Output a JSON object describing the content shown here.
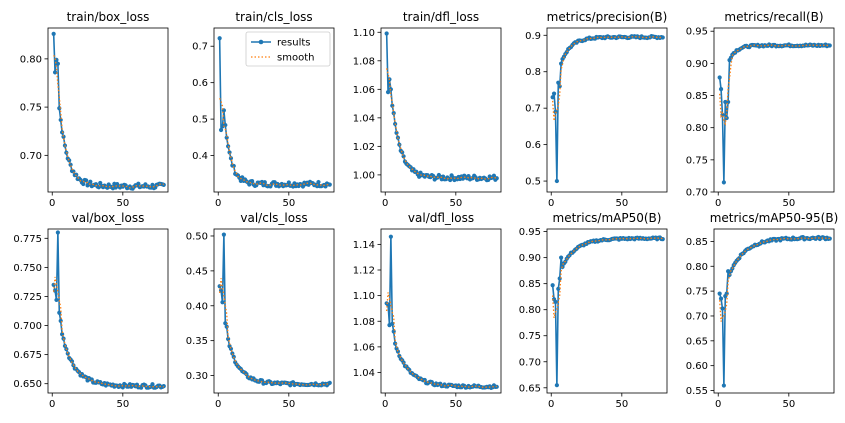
{
  "colors": {
    "results": "#1f77b4",
    "smooth": "#ff7f0e"
  },
  "legend": {
    "results": "results",
    "smooth": "smooth",
    "placement": "top-right of train/cls_loss"
  },
  "chart_data": [
    {
      "type": "line",
      "title": "train/box_loss",
      "xlim": [
        -3,
        82
      ],
      "ylim": [
        0.662,
        0.832
      ],
      "xticks": [
        0,
        50
      ],
      "xtick_labels": [
        "0",
        "50"
      ],
      "yticks": [
        0.7,
        0.75,
        0.8
      ],
      "ytick_labels": [
        "0.70",
        "0.75",
        "0.80"
      ],
      "series": [
        {
          "name": "results",
          "kind": "curve",
          "start": 0.826,
          "end": 0.668,
          "decay": 6,
          "pulls": [
            [
              1,
              0.786
            ],
            [
              2,
              0.799
            ],
            [
              3,
              0.795
            ]
          ]
        }
      ]
    },
    {
      "type": "line",
      "title": "train/cls_loss",
      "xlim": [
        -3,
        82
      ],
      "ylim": [
        0.3,
        0.75
      ],
      "xticks": [
        0,
        50
      ],
      "xtick_labels": [
        "0",
        "50"
      ],
      "yticks": [
        0.4,
        0.5,
        0.6,
        0.7
      ],
      "ytick_labels": [
        "0.4",
        "0.5",
        "0.6",
        "0.7"
      ],
      "legend": true,
      "series": [
        {
          "name": "results",
          "kind": "curve",
          "start": 0.72,
          "end": 0.322,
          "decay": 4.5,
          "pulls": [
            [
              1,
              0.47
            ],
            [
              2,
              0.48
            ]
          ]
        }
      ]
    },
    {
      "type": "line",
      "title": "train/dfl_loss",
      "xlim": [
        -3,
        82
      ],
      "ylim": [
        0.988,
        1.103
      ],
      "xticks": [
        0,
        50
      ],
      "xtick_labels": [
        "0",
        "50"
      ],
      "yticks": [
        1.0,
        1.02,
        1.04,
        1.06,
        1.08,
        1.1
      ],
      "ytick_labels": [
        "1.00",
        "1.02",
        "1.04",
        "1.06",
        "1.08",
        "1.10"
      ],
      "series": [
        {
          "name": "results",
          "kind": "curve",
          "start": 1.099,
          "end": 0.998,
          "decay": 6,
          "pulls": [
            [
              1,
              1.058
            ],
            [
              2,
              1.067
            ],
            [
              3,
              1.06
            ]
          ]
        }
      ]
    },
    {
      "type": "line",
      "title": "metrics/precision(B)",
      "xlim": [
        -3,
        82
      ],
      "ylim": [
        0.47,
        0.92
      ],
      "xticks": [
        0,
        50
      ],
      "xtick_labels": [
        "0",
        "50"
      ],
      "yticks": [
        0.5,
        0.6,
        0.7,
        0.8,
        0.9
      ],
      "ytick_labels": [
        "0.5",
        "0.6",
        "0.7",
        "0.8",
        "0.9"
      ],
      "series": [
        {
          "name": "results",
          "kind": "curve",
          "start": 0.73,
          "end": 0.895,
          "decay": 7,
          "pulls": [
            [
              0,
              0.73
            ],
            [
              1,
              0.74
            ],
            [
              2,
              0.69
            ],
            [
              3,
              0.5
            ],
            [
              4,
              0.77
            ],
            [
              5,
              0.76
            ]
          ]
        }
      ]
    },
    {
      "type": "line",
      "title": "metrics/recall(B)",
      "xlim": [
        -3,
        82
      ],
      "ylim": [
        0.7,
        0.955
      ],
      "xticks": [
        0,
        50
      ],
      "xtick_labels": [
        "0",
        "50"
      ],
      "yticks": [
        0.7,
        0.75,
        0.8,
        0.85,
        0.9,
        0.95
      ],
      "ytick_labels": [
        "0.70",
        "0.75",
        "0.80",
        "0.85",
        "0.90",
        "0.95"
      ],
      "series": [
        {
          "name": "results",
          "kind": "curve",
          "start": 0.84,
          "end": 0.928,
          "decay": 5,
          "pulls": [
            [
              0,
              0.878
            ],
            [
              1,
              0.86
            ],
            [
              2,
              0.82
            ],
            [
              3,
              0.715
            ],
            [
              4,
              0.84
            ],
            [
              5,
              0.815
            ],
            [
              6,
              0.84
            ]
          ]
        }
      ]
    },
    {
      "type": "line",
      "title": "val/box_loss",
      "xlim": [
        -3,
        82
      ],
      "ylim": [
        0.642,
        0.783
      ],
      "xticks": [
        0,
        50
      ],
      "xtick_labels": [
        "0",
        "50"
      ],
      "yticks": [
        0.65,
        0.675,
        0.7,
        0.725,
        0.75,
        0.775
      ],
      "ytick_labels": [
        "0.650",
        "0.675",
        "0.700",
        "0.725",
        "0.750",
        "0.775"
      ],
      "series": [
        {
          "name": "results",
          "kind": "curve",
          "start": 0.735,
          "end": 0.648,
          "decay": 9,
          "pulls": [
            [
              0,
              0.735
            ],
            [
              1,
              0.73
            ],
            [
              2,
              0.722
            ],
            [
              3,
              0.78
            ],
            [
              4,
              0.711
            ],
            [
              5,
              0.704
            ]
          ]
        }
      ]
    },
    {
      "type": "line",
      "title": "val/cls_loss",
      "xlim": [
        -3,
        82
      ],
      "ylim": [
        0.275,
        0.51
      ],
      "xticks": [
        0,
        50
      ],
      "xtick_labels": [
        "0",
        "50"
      ],
      "yticks": [
        0.3,
        0.35,
        0.4,
        0.45,
        0.5
      ],
      "ytick_labels": [
        "0.30",
        "0.35",
        "0.40",
        "0.45",
        "0.50"
      ],
      "series": [
        {
          "name": "results",
          "kind": "curve",
          "start": 0.42,
          "end": 0.288,
          "decay": 8,
          "pulls": [
            [
              0,
              0.428
            ],
            [
              1,
              0.422
            ],
            [
              2,
              0.405
            ],
            [
              3,
              0.502
            ],
            [
              4,
              0.375
            ],
            [
              5,
              0.37
            ]
          ]
        }
      ]
    },
    {
      "type": "line",
      "title": "val/dfl_loss",
      "xlim": [
        -3,
        82
      ],
      "ylim": [
        1.024,
        1.152
      ],
      "xticks": [
        0,
        50
      ],
      "xtick_labels": [
        "0",
        "50"
      ],
      "yticks": [
        1.04,
        1.06,
        1.08,
        1.1,
        1.12,
        1.14
      ],
      "ytick_labels": [
        "1.04",
        "1.06",
        "1.08",
        "1.10",
        "1.12",
        "1.14"
      ],
      "series": [
        {
          "name": "results",
          "kind": "curve",
          "start": 1.09,
          "end": 1.029,
          "decay": 10,
          "pulls": [
            [
              0,
              1.094
            ],
            [
              1,
              1.093
            ],
            [
              2,
              1.077
            ],
            [
              3,
              1.146
            ],
            [
              4,
              1.078
            ],
            [
              5,
              1.072
            ]
          ]
        }
      ]
    },
    {
      "type": "line",
      "title": "metrics/mAP50(B)",
      "xlim": [
        -3,
        82
      ],
      "ylim": [
        0.64,
        0.955
      ],
      "xticks": [
        0,
        50
      ],
      "xtick_labels": [
        "0",
        "50"
      ],
      "yticks": [
        0.65,
        0.7,
        0.75,
        0.8,
        0.85,
        0.9,
        0.95
      ],
      "ytick_labels": [
        "0.65",
        "0.70",
        "0.75",
        "0.80",
        "0.85",
        "0.90",
        "0.95"
      ],
      "series": [
        {
          "name": "results",
          "kind": "curve",
          "start": 0.83,
          "end": 0.937,
          "decay": 10,
          "pulls": [
            [
              0,
              0.847
            ],
            [
              1,
              0.82
            ],
            [
              2,
              0.815
            ],
            [
              3,
              0.655
            ],
            [
              4,
              0.84
            ],
            [
              5,
              0.86
            ],
            [
              6,
              0.9
            ]
          ]
        }
      ]
    },
    {
      "type": "line",
      "title": "metrics/mAP50-95(B)",
      "xlim": [
        -3,
        82
      ],
      "ylim": [
        0.545,
        0.875
      ],
      "xticks": [
        0,
        50
      ],
      "xtick_labels": [
        "0",
        "50"
      ],
      "yticks": [
        0.55,
        0.6,
        0.65,
        0.7,
        0.75,
        0.8,
        0.85
      ],
      "ytick_labels": [
        "0.55",
        "0.60",
        "0.65",
        "0.70",
        "0.75",
        "0.80",
        "0.85"
      ],
      "series": [
        {
          "name": "results",
          "kind": "curve",
          "start": 0.72,
          "end": 0.857,
          "decay": 11,
          "pulls": [
            [
              0,
              0.745
            ],
            [
              1,
              0.735
            ],
            [
              2,
              0.715
            ],
            [
              3,
              0.56
            ],
            [
              4,
              0.74
            ],
            [
              5,
              0.745
            ],
            [
              6,
              0.79
            ]
          ]
        }
      ]
    }
  ]
}
